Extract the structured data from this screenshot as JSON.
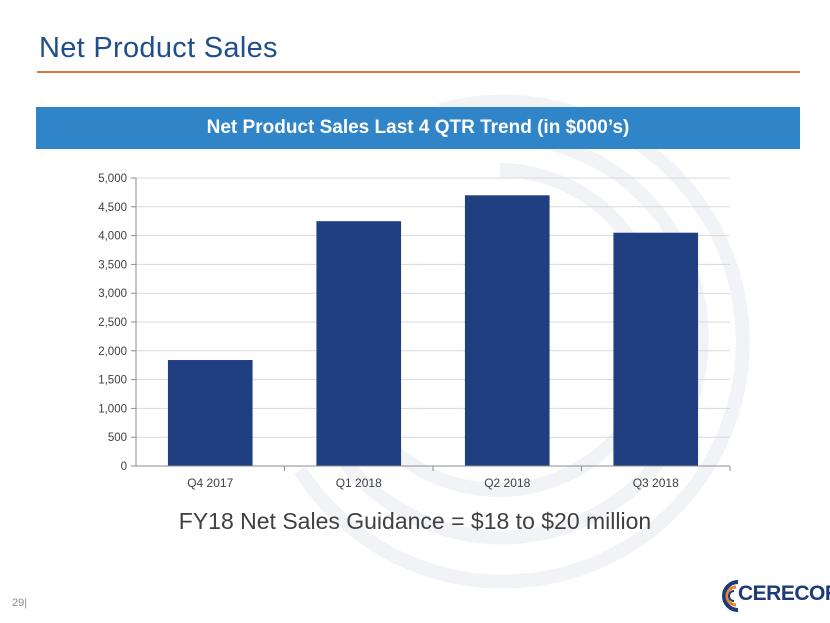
{
  "slide": {
    "title": "Net Product Sales",
    "banner": "Net Product Sales Last 4 QTR Trend (in $000’s)",
    "guidance": "FY18 Net Sales Guidance = $18 to $20 million",
    "page_number": "29|",
    "logo_text": "CERECOR"
  },
  "colors": {
    "title": "#1f4e8c",
    "rule": "#d9783d",
    "banner": "#2f85c8",
    "bar": "#1f3f80",
    "logo_navy": "#1e3a78",
    "logo_orange": "#e8842c"
  },
  "chart_data": {
    "type": "bar",
    "categories": [
      "Q4 2017",
      "Q1 2018",
      "Q2 2018",
      "Q3 2018"
    ],
    "values": [
      1840,
      4250,
      4700,
      4050
    ],
    "yticks": [
      "0",
      "500",
      "1,000",
      "1,500",
      "2,000",
      "2,500",
      "3,000",
      "3,500",
      "4,000",
      "4,500",
      "5,000"
    ],
    "ylim": [
      0,
      5000
    ],
    "grid": true,
    "legend": "none"
  }
}
